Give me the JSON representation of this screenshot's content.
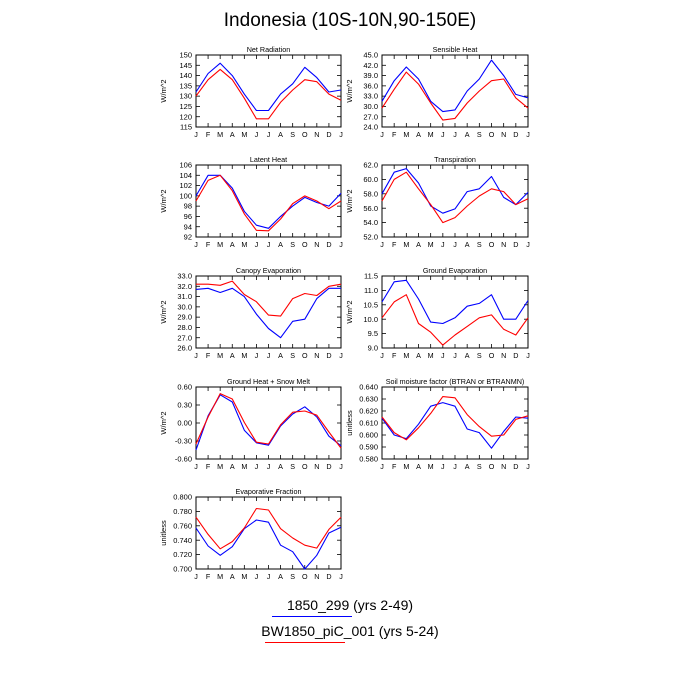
{
  "title": "Indonesia (10S-10N,90-150E)",
  "legend": [
    {
      "label": "1850_299 (yrs 2-49)",
      "color": "#0000ff"
    },
    {
      "label": "BW1850_piC_001 (yrs 5-24)",
      "color": "#ff0000"
    }
  ],
  "chart_data": [
    {
      "type": "line",
      "title": "Net Radiation",
      "ylabel": "W/m^2",
      "x": [
        "J",
        "F",
        "M",
        "A",
        "M",
        "J",
        "J",
        "A",
        "S",
        "O",
        "N",
        "D",
        "J"
      ],
      "ylim": [
        115,
        150
      ],
      "yticks": [
        115,
        120,
        125,
        130,
        135,
        140,
        145,
        150
      ],
      "ytick_labels": [
        "115",
        "120",
        "125",
        "130",
        "135",
        "140",
        "145",
        "150"
      ],
      "series": [
        {
          "color": "#0000ff",
          "values": [
            132,
            141,
            146,
            140,
            131,
            123,
            123,
            131,
            136,
            144,
            139,
            132,
            133
          ]
        },
        {
          "color": "#ff0000",
          "values": [
            130,
            138,
            143,
            138,
            129,
            119,
            119,
            127,
            133,
            138,
            137,
            131,
            128
          ]
        }
      ]
    },
    {
      "type": "line",
      "title": "Sensible Heat",
      "ylabel": "W/m^2",
      "x": [
        "J",
        "F",
        "M",
        "A",
        "M",
        "J",
        "J",
        "A",
        "S",
        "O",
        "N",
        "D",
        "J"
      ],
      "ylim": [
        24,
        45
      ],
      "yticks": [
        24,
        27,
        30,
        33,
        36,
        39,
        42,
        45
      ],
      "ytick_labels": [
        "24.0",
        "27.0",
        "30.0",
        "33.0",
        "36.0",
        "39.0",
        "42.0",
        "45.0"
      ],
      "series": [
        {
          "color": "#0000ff",
          "values": [
            31.5,
            37.5,
            41.5,
            38,
            31.5,
            28.5,
            29,
            34.5,
            38,
            43.5,
            39,
            33.5,
            32.5
          ]
        },
        {
          "color": "#ff0000",
          "values": [
            29.5,
            35,
            40,
            36.5,
            31,
            26,
            26.5,
            31,
            34.5,
            37.5,
            38,
            32.5,
            29.5
          ]
        }
      ]
    },
    {
      "type": "line",
      "title": "Latent Heat",
      "ylabel": "W/m^2",
      "x": [
        "J",
        "F",
        "M",
        "A",
        "M",
        "J",
        "J",
        "A",
        "S",
        "O",
        "N",
        "D",
        "J"
      ],
      "ylim": [
        92,
        106
      ],
      "yticks": [
        92,
        94,
        96,
        98,
        100,
        102,
        104,
        106
      ],
      "ytick_labels": [
        "92",
        "94",
        "96",
        "98",
        "100",
        "102",
        "104",
        "106"
      ],
      "series": [
        {
          "color": "#0000ff",
          "values": [
            100,
            104,
            104,
            101.5,
            97,
            94.3,
            93.7,
            96,
            98,
            99.7,
            98.7,
            98,
            100.5
          ]
        },
        {
          "color": "#ff0000",
          "values": [
            99,
            103,
            104,
            101,
            96.5,
            93.3,
            93.2,
            95.5,
            98.5,
            100,
            99,
            97.5,
            99
          ]
        }
      ]
    },
    {
      "type": "line",
      "title": "Transpiration",
      "ylabel": "W/m^2",
      "x": [
        "J",
        "F",
        "M",
        "A",
        "M",
        "J",
        "J",
        "A",
        "S",
        "O",
        "N",
        "D",
        "J"
      ],
      "ylim": [
        52,
        62
      ],
      "yticks": [
        52,
        54,
        56,
        58,
        60,
        62
      ],
      "ytick_labels": [
        "52.0",
        "54.0",
        "56.0",
        "58.0",
        "60.0",
        "62.0"
      ],
      "series": [
        {
          "color": "#0000ff",
          "values": [
            58,
            61,
            61.5,
            59.5,
            56.3,
            55.3,
            55.9,
            58.3,
            58.7,
            60.4,
            57.5,
            56.5,
            58.2
          ]
        },
        {
          "color": "#ff0000",
          "values": [
            57,
            60,
            61,
            58.7,
            56.5,
            54,
            54.7,
            56.3,
            57.7,
            58.7,
            58.3,
            56.5,
            57.3
          ]
        }
      ]
    },
    {
      "type": "line",
      "title": "Canopy Evaporation",
      "ylabel": "W/m^2",
      "x": [
        "J",
        "F",
        "M",
        "A",
        "M",
        "J",
        "J",
        "A",
        "S",
        "O",
        "N",
        "D",
        "J"
      ],
      "ylim": [
        26,
        33
      ],
      "yticks": [
        26,
        27,
        28,
        29,
        30,
        31,
        32,
        33
      ],
      "ytick_labels": [
        "26.0",
        "27.0",
        "28.0",
        "29.0",
        "30.0",
        "31.0",
        "32.0",
        "33.0"
      ],
      "series": [
        {
          "color": "#0000ff",
          "values": [
            31.7,
            31.8,
            31.4,
            31.8,
            31,
            29.3,
            27.9,
            27,
            28.6,
            28.8,
            30.8,
            31.8,
            31.8
          ]
        },
        {
          "color": "#ff0000",
          "values": [
            32.2,
            32.2,
            32.1,
            32.5,
            31.2,
            30.5,
            29.2,
            29.1,
            30.8,
            31.3,
            31.1,
            32,
            32.2
          ]
        }
      ]
    },
    {
      "type": "line",
      "title": "Ground Evaporation",
      "ylabel": "W/m^2",
      "x": [
        "J",
        "F",
        "M",
        "A",
        "M",
        "J",
        "J",
        "A",
        "S",
        "O",
        "N",
        "D",
        "J"
      ],
      "ylim": [
        9,
        11.5
      ],
      "yticks": [
        9,
        9.5,
        10,
        10.5,
        11,
        11.5
      ],
      "ytick_labels": [
        "9.0",
        "9.5",
        "10.0",
        "10.5",
        "11.0",
        "11.5"
      ],
      "series": [
        {
          "color": "#0000ff",
          "values": [
            10.6,
            11.3,
            11.35,
            10.7,
            9.9,
            9.85,
            10.05,
            10.45,
            10.55,
            10.85,
            10,
            10,
            10.65
          ]
        },
        {
          "color": "#ff0000",
          "values": [
            10.05,
            10.6,
            10.85,
            9.85,
            9.55,
            9.1,
            9.45,
            9.75,
            10.05,
            10.15,
            9.65,
            9.45,
            10.05
          ]
        }
      ]
    },
    {
      "type": "line",
      "title": "Ground Heat + Snow Melt",
      "ylabel": "W/m^2",
      "x": [
        "J",
        "F",
        "M",
        "A",
        "M",
        "J",
        "J",
        "A",
        "S",
        "O",
        "N",
        "D",
        "J"
      ],
      "ylim": [
        -0.6,
        0.6
      ],
      "yticks": [
        -0.6,
        -0.3,
        0,
        0.3,
        0.6
      ],
      "ytick_labels": [
        "-0.60",
        "-0.30",
        "0.00",
        "0.30",
        "0.60"
      ],
      "series": [
        {
          "color": "#0000ff",
          "values": [
            -0.45,
            0.12,
            0.47,
            0.35,
            -0.12,
            -0.33,
            -0.37,
            -0.05,
            0.15,
            0.27,
            0.1,
            -0.22,
            -0.38
          ]
        },
        {
          "color": "#ff0000",
          "values": [
            -0.35,
            0.1,
            0.49,
            0.4,
            0.01,
            -0.32,
            -0.35,
            -0.03,
            0.18,
            0.2,
            0.13,
            -0.15,
            -0.42
          ]
        }
      ]
    },
    {
      "type": "line",
      "title": "Soil moisture factor (BTRAN or BTRANMN)",
      "ylabel": "unitless",
      "x": [
        "J",
        "F",
        "M",
        "A",
        "M",
        "J",
        "J",
        "A",
        "S",
        "O",
        "N",
        "D",
        "J"
      ],
      "ylim": [
        0.58,
        0.64
      ],
      "yticks": [
        0.58,
        0.59,
        0.6,
        0.61,
        0.62,
        0.63,
        0.64
      ],
      "ytick_labels": [
        "0.580",
        "0.590",
        "0.600",
        "0.610",
        "0.620",
        "0.630",
        "0.640"
      ],
      "series": [
        {
          "color": "#0000ff",
          "values": [
            0.614,
            0.6,
            0.597,
            0.609,
            0.624,
            0.627,
            0.624,
            0.605,
            0.602,
            0.589,
            0.603,
            0.615,
            0.614
          ]
        },
        {
          "color": "#ff0000",
          "values": [
            0.615,
            0.602,
            0.596,
            0.606,
            0.618,
            0.632,
            0.631,
            0.617,
            0.607,
            0.599,
            0.6,
            0.613,
            0.616
          ]
        }
      ]
    },
    {
      "type": "line",
      "title": "Evaporative Fraction",
      "ylabel": "unitless",
      "x": [
        "J",
        "F",
        "M",
        "A",
        "M",
        "J",
        "J",
        "A",
        "S",
        "O",
        "N",
        "D",
        "J"
      ],
      "ylim": [
        0.7,
        0.8
      ],
      "yticks": [
        0.7,
        0.72,
        0.74,
        0.76,
        0.78,
        0.8
      ],
      "ytick_labels": [
        "0.700",
        "0.720",
        "0.740",
        "0.760",
        "0.780",
        "0.800"
      ],
      "series": [
        {
          "color": "#0000ff",
          "values": [
            0.757,
            0.732,
            0.719,
            0.731,
            0.756,
            0.768,
            0.765,
            0.733,
            0.724,
            0.7,
            0.719,
            0.75,
            0.758
          ]
        },
        {
          "color": "#ff0000",
          "values": [
            0.772,
            0.748,
            0.728,
            0.738,
            0.757,
            0.784,
            0.782,
            0.756,
            0.743,
            0.733,
            0.729,
            0.755,
            0.772
          ]
        }
      ]
    }
  ]
}
